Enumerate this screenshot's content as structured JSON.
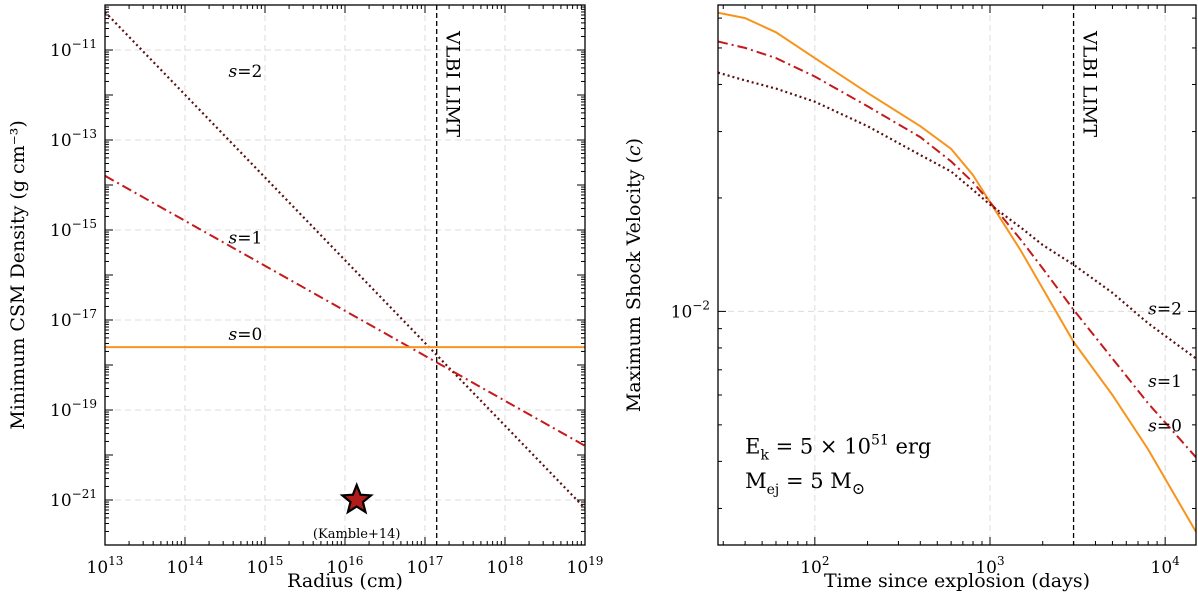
{
  "chart_data": [
    {
      "type": "line",
      "xscale": "log",
      "yscale": "log",
      "xlabel": "Radius (cm)",
      "ylabel": "Minimum CSM Density (g cm⁻³)",
      "xlim": [
        10000000000000.0,
        1e+19
      ],
      "ylim": [
        1e-22,
        1e-10
      ],
      "grid": true,
      "xticks": [
        {
          "value": 10000000000000.0,
          "base": "10",
          "exp": "13"
        },
        {
          "value": 100000000000000.0,
          "base": "10",
          "exp": "14"
        },
        {
          "value": 1000000000000000.0,
          "base": "10",
          "exp": "15"
        },
        {
          "value": 1e+16,
          "base": "10",
          "exp": "16"
        },
        {
          "value": 1e+17,
          "base": "10",
          "exp": "17"
        },
        {
          "value": 1e+18,
          "base": "10",
          "exp": "18"
        },
        {
          "value": 1e+19,
          "base": "10",
          "exp": "19"
        }
      ],
      "yticks": [
        {
          "value": 1e-11,
          "base": "10",
          "exp": "−11"
        },
        {
          "value": 1e-13,
          "base": "10",
          "exp": "−13"
        },
        {
          "value": 1e-15,
          "base": "10",
          "exp": "−15"
        },
        {
          "value": 1e-17,
          "base": "10",
          "exp": "−17"
        },
        {
          "value": 1e-19,
          "base": "10",
          "exp": "−19"
        },
        {
          "value": 1e-21,
          "base": "10",
          "exp": "−21"
        }
      ],
      "series": [
        {
          "name": "s=2",
          "label_s": "s",
          "label_eq": "=2",
          "style": "dotted",
          "color": "#5c1010",
          "x": [
            10000000000000.0,
            1e+19
          ],
          "y": [
            7e-11,
            6.5e-22
          ],
          "label_at": [
            350000000000000.0,
            2.5e-12
          ]
        },
        {
          "name": "s=1",
          "label_s": "s",
          "label_eq": "=1",
          "style": "dashdot",
          "color": "#c41a1a",
          "x": [
            10000000000000.0,
            1e+19
          ],
          "y": [
            1.6e-14,
            1.6e-20
          ],
          "label_at": [
            350000000000000.0,
            5e-16
          ]
        },
        {
          "name": "s=0",
          "label_s": "s",
          "label_eq": "=0",
          "style": "solid",
          "color": "#f7941d",
          "x": [
            10000000000000.0,
            1e+19
          ],
          "y": [
            2.5e-18,
            2.5e-18
          ],
          "label_at": [
            350000000000000.0,
            3.6e-18
          ]
        }
      ],
      "vline": {
        "x": 1.4e+17,
        "label": "VLBI LIMT"
      },
      "marker": {
        "x": 1.4e+16,
        "y": 1e-21,
        "label": "(Kamble+14)",
        "color": "#b01c1c"
      }
    },
    {
      "type": "line",
      "xscale": "log",
      "yscale": "log",
      "xlabel": "Time since explosion (days)",
      "ylabel_main": "Maximum Shock Velocity (",
      "ylabel_var": "c",
      "ylabel_end": ")",
      "xlim": [
        28,
        15000
      ],
      "ylim": [
        0.0024,
        0.065
      ],
      "grid": true,
      "xticks": [
        {
          "value": 100,
          "base": "10",
          "exp": "2"
        },
        {
          "value": 1000,
          "base": "10",
          "exp": "3"
        },
        {
          "value": 10000,
          "base": "10",
          "exp": "4"
        }
      ],
      "yticks": [
        {
          "value": 0.01,
          "base": "10",
          "exp": "−2"
        }
      ],
      "series": [
        {
          "name": "s=0",
          "label_s": "s",
          "label_eq": "=0",
          "style": "solid",
          "color": "#f7941d",
          "x": [
            28,
            40,
            60,
            100,
            200,
            400,
            600,
            800,
            1000,
            1500,
            2000,
            3000,
            5000,
            8000,
            15000
          ],
          "y": [
            0.062,
            0.06,
            0.055,
            0.047,
            0.038,
            0.031,
            0.027,
            0.023,
            0.0195,
            0.0145,
            0.0115,
            0.0083,
            0.006,
            0.0043,
            0.0026
          ],
          "label_at": [
            8000,
            0.0048
          ]
        },
        {
          "name": "s=1",
          "label_s": "s",
          "label_eq": "=1",
          "style": "dashdot",
          "color": "#c41a1a",
          "x": [
            28,
            40,
            60,
            100,
            200,
            400,
            600,
            800,
            1000,
            1500,
            2000,
            3000,
            5000,
            8000,
            15000
          ],
          "y": [
            0.052,
            0.05,
            0.047,
            0.042,
            0.035,
            0.029,
            0.025,
            0.022,
            0.0195,
            0.0155,
            0.013,
            0.0101,
            0.0075,
            0.0057,
            0.0041
          ],
          "label_at": [
            8000,
            0.0063
          ]
        },
        {
          "name": "s=2",
          "label_s": "s",
          "label_eq": "=2",
          "style": "dotted",
          "color": "#5c1010",
          "x": [
            28,
            40,
            60,
            100,
            200,
            400,
            600,
            800,
            1000,
            1500,
            2000,
            3000,
            5000,
            8000,
            15000
          ],
          "y": [
            0.043,
            0.041,
            0.039,
            0.036,
            0.031,
            0.026,
            0.0235,
            0.021,
            0.0192,
            0.0167,
            0.015,
            0.0133,
            0.0112,
            0.0093,
            0.0075
          ],
          "label_at": [
            8000,
            0.0098
          ]
        }
      ],
      "vline": {
        "x": 3000,
        "label": "VLBI LIMT"
      },
      "annotations": [
        {
          "id": "ek",
          "main": "E",
          "sub": "k",
          "mid": " = 5 × 10",
          "sup": "51",
          "end": " erg",
          "at": [
            40,
            0.0042
          ]
        },
        {
          "id": "mej",
          "main": "M",
          "sub": "ej",
          "mid": " = 5 M",
          "sym": "⊙",
          "at": [
            40,
            0.0034
          ]
        }
      ]
    }
  ]
}
